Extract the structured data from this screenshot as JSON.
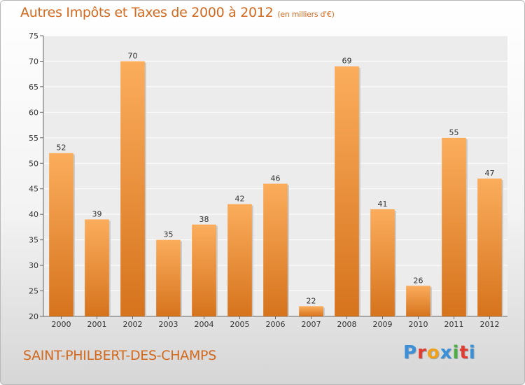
{
  "title": "Autres Impôts et Taxes de 2000 à 2012",
  "subtitle": "(en milliers d'€)",
  "commune": "SAINT-PHILBERT-DES-CHAMPS",
  "logo": {
    "letters": [
      "P",
      "r",
      "o",
      "x",
      "i",
      "t",
      "i"
    ],
    "colors": [
      "#3a8fd6",
      "#e23b2f",
      "#f0a11b",
      "#3a8fd6",
      "#4caf3e",
      "#e23b2f",
      "#3a8fd6"
    ]
  },
  "colors": {
    "bar_light": "#f9a64f",
    "bar_dark": "#d9751c",
    "accent": "#d2691e"
  },
  "chart_data": {
    "type": "bar",
    "categories": [
      "2000",
      "2001",
      "2002",
      "2003",
      "2004",
      "2005",
      "2006",
      "2007",
      "2008",
      "2009",
      "2010",
      "2011",
      "2012"
    ],
    "values": [
      52,
      39,
      70,
      35,
      38,
      42,
      46,
      22,
      69,
      41,
      26,
      55,
      47
    ],
    "ylim": [
      20,
      75
    ],
    "yticks": [
      20,
      25,
      30,
      35,
      40,
      45,
      50,
      55,
      60,
      65,
      70,
      75
    ],
    "grid": true,
    "xlabel": "",
    "ylabel": ""
  }
}
